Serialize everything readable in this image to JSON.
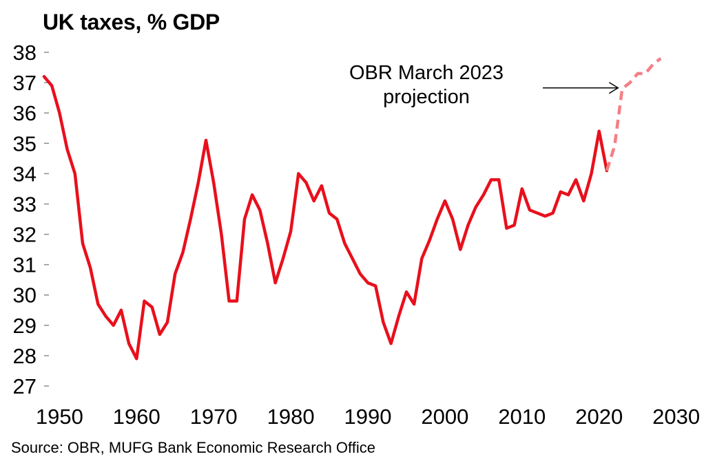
{
  "chart_data": {
    "type": "line",
    "title": "UK taxes, % GDP",
    "source": "Source: OBR, MUFG Bank Economic Research Office",
    "xlim": [
      1948,
      2032
    ],
    "ylim": [
      27,
      38
    ],
    "x_ticks": [
      "1950",
      "1960",
      "1970",
      "1980",
      "1990",
      "2000",
      "2010",
      "2020",
      "2030"
    ],
    "y_ticks": [
      "38",
      "37",
      "36",
      "35",
      "34",
      "33",
      "32",
      "31",
      "30",
      "29",
      "28",
      "27"
    ],
    "grid": false,
    "colors": {
      "actual": "#e8101c",
      "projection": "#f47f86"
    },
    "annotation": {
      "lines": [
        "OBR March 2023",
        "projection"
      ],
      "points_to": [
        2023,
        36.85
      ]
    },
    "series": [
      {
        "style": "solid",
        "x": [
          1948,
          1949,
          1950,
          1951,
          1952,
          1953,
          1954,
          1955,
          1956,
          1957,
          1958,
          1959,
          1960,
          1961,
          1962,
          1963,
          1964,
          1965,
          1966,
          1967,
          1968,
          1969,
          1970,
          1971,
          1972,
          1973,
          1974,
          1975,
          1976,
          1977,
          1978,
          1979,
          1980,
          1981,
          1982,
          1983,
          1984,
          1985,
          1986,
          1987,
          1988,
          1989,
          1990,
          1991,
          1992,
          1993,
          1994,
          1995,
          1996,
          1997,
          1998,
          1999,
          2000,
          2001,
          2002,
          2003,
          2004,
          2005,
          2006,
          2007,
          2008,
          2009,
          2010,
          2011,
          2012,
          2013,
          2014,
          2015,
          2016,
          2017,
          2018,
          2019,
          2020,
          2021
        ],
        "y": [
          37.2,
          36.9,
          36.0,
          34.8,
          34.0,
          31.7,
          30.9,
          29.7,
          29.3,
          29.0,
          29.5,
          28.4,
          27.9,
          29.8,
          29.6,
          28.7,
          29.1,
          30.7,
          31.4,
          32.5,
          33.7,
          35.1,
          33.7,
          32.0,
          29.8,
          29.8,
          32.5,
          33.3,
          32.8,
          31.7,
          30.4,
          31.2,
          32.1,
          34.0,
          33.7,
          33.1,
          33.6,
          32.7,
          32.5,
          31.7,
          31.2,
          30.7,
          30.4,
          30.3,
          29.1,
          28.4,
          29.3,
          30.1,
          29.7,
          31.2,
          31.8,
          32.5,
          33.1,
          32.5,
          31.5,
          32.3,
          32.9,
          33.3,
          33.8,
          33.8,
          32.2,
          32.3,
          33.5,
          32.8,
          32.7,
          32.6,
          32.7,
          33.4,
          33.3,
          33.8,
          33.1,
          34.0,
          35.4,
          34.1
        ]
      },
      {
        "style": "dashed",
        "x": [
          2021,
          2022,
          2023,
          2024,
          2025,
          2026,
          2027,
          2028
        ],
        "y": [
          34.1,
          34.9,
          36.8,
          37.0,
          37.3,
          37.3,
          37.6,
          37.8
        ]
      }
    ]
  }
}
